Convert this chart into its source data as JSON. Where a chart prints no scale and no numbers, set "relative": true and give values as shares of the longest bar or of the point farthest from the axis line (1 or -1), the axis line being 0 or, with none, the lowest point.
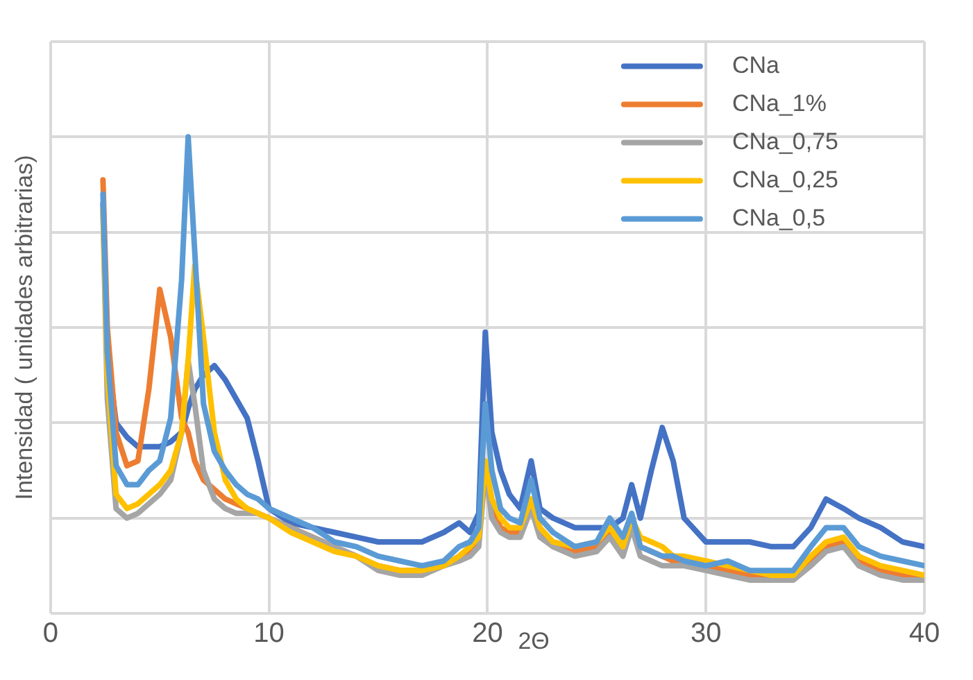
{
  "chart_data": {
    "type": "line",
    "ylabel": "Intensidad ( unidades arbitrarias)",
    "xlabel": "2Θ",
    "relative": true,
    "grid": true,
    "legend": "top right",
    "marker": "none",
    "line_style": "solid",
    "xlim": [
      0,
      40
    ],
    "xticks": [
      0,
      10,
      20,
      30,
      40
    ],
    "x": [
      2.4,
      2.6,
      3,
      3.5,
      4,
      4.5,
      5,
      5.5,
      6,
      6.3,
      6.6,
      7,
      7.5,
      8,
      8.5,
      9,
      9.5,
      10,
      11,
      12,
      13,
      14,
      15,
      16,
      17,
      18,
      18.7,
      19.2,
      19.6,
      19.9,
      20.2,
      20.6,
      21,
      21.5,
      22,
      22.4,
      23,
      24,
      25,
      25.6,
      26.2,
      26.6,
      27,
      27.5,
      28,
      28.5,
      29,
      30,
      31,
      32,
      33,
      34,
      34.8,
      35.5,
      36.3,
      37,
      38,
      39,
      40
    ],
    "series": [
      {
        "name": "CNa",
        "color": "#4472c4",
        "values": [
          0.86,
          0.55,
          0.4,
          0.37,
          0.35,
          0.35,
          0.35,
          0.36,
          0.38,
          0.43,
          0.47,
          0.5,
          0.52,
          0.49,
          0.45,
          0.41,
          0.32,
          0.22,
          0.19,
          0.18,
          0.17,
          0.16,
          0.15,
          0.15,
          0.15,
          0.17,
          0.19,
          0.17,
          0.21,
          0.59,
          0.38,
          0.3,
          0.25,
          0.22,
          0.32,
          0.22,
          0.2,
          0.18,
          0.18,
          0.18,
          0.2,
          0.27,
          0.2,
          0.3,
          0.39,
          0.32,
          0.2,
          0.15,
          0.15,
          0.15,
          0.14,
          0.14,
          0.18,
          0.24,
          0.22,
          0.2,
          0.18,
          0.15,
          0.14
        ]
      },
      {
        "name": "CNa_1%",
        "color": "#ed7d31",
        "values": [
          0.91,
          0.6,
          0.38,
          0.31,
          0.32,
          0.47,
          0.68,
          0.58,
          0.41,
          0.38,
          0.32,
          0.28,
          0.26,
          0.24,
          0.23,
          0.22,
          0.21,
          0.2,
          0.18,
          0.16,
          0.14,
          0.12,
          0.1,
          0.09,
          0.09,
          0.1,
          0.12,
          0.13,
          0.15,
          0.31,
          0.22,
          0.18,
          0.17,
          0.17,
          0.23,
          0.17,
          0.14,
          0.13,
          0.14,
          0.17,
          0.13,
          0.19,
          0.14,
          0.13,
          0.12,
          0.11,
          0.11,
          0.1,
          0.09,
          0.08,
          0.08,
          0.08,
          0.11,
          0.14,
          0.15,
          0.11,
          0.09,
          0.08,
          0.08
        ]
      },
      {
        "name": "CNa_0,75",
        "color": "#a5a5a5",
        "values": [
          0.84,
          0.45,
          0.22,
          0.2,
          0.21,
          0.23,
          0.25,
          0.28,
          0.38,
          0.53,
          0.44,
          0.3,
          0.24,
          0.22,
          0.21,
          0.21,
          0.21,
          0.2,
          0.18,
          0.16,
          0.14,
          0.12,
          0.09,
          0.08,
          0.08,
          0.1,
          0.11,
          0.12,
          0.14,
          0.3,
          0.2,
          0.17,
          0.16,
          0.16,
          0.22,
          0.16,
          0.14,
          0.12,
          0.13,
          0.16,
          0.12,
          0.18,
          0.12,
          0.11,
          0.1,
          0.1,
          0.1,
          0.09,
          0.08,
          0.07,
          0.07,
          0.07,
          0.1,
          0.13,
          0.14,
          0.1,
          0.08,
          0.07,
          0.07
        ]
      },
      {
        "name": "CNa_0,25",
        "color": "#ffc000",
        "values": [
          0.85,
          0.5,
          0.25,
          0.22,
          0.23,
          0.25,
          0.27,
          0.3,
          0.38,
          0.53,
          0.73,
          0.58,
          0.38,
          0.28,
          0.24,
          0.22,
          0.21,
          0.2,
          0.17,
          0.15,
          0.13,
          0.12,
          0.1,
          0.09,
          0.09,
          0.1,
          0.12,
          0.14,
          0.16,
          0.32,
          0.24,
          0.2,
          0.18,
          0.18,
          0.24,
          0.18,
          0.15,
          0.14,
          0.15,
          0.18,
          0.14,
          0.2,
          0.16,
          0.15,
          0.14,
          0.12,
          0.12,
          0.11,
          0.1,
          0.09,
          0.08,
          0.08,
          0.12,
          0.15,
          0.16,
          0.12,
          0.1,
          0.09,
          0.08
        ]
      },
      {
        "name": "CNa_0,5",
        "color": "#5b9bd5",
        "values": [
          0.88,
          0.55,
          0.31,
          0.27,
          0.27,
          0.3,
          0.32,
          0.41,
          0.7,
          1.0,
          0.76,
          0.44,
          0.34,
          0.3,
          0.27,
          0.25,
          0.24,
          0.22,
          0.2,
          0.18,
          0.15,
          0.14,
          0.12,
          0.11,
          0.1,
          0.11,
          0.14,
          0.15,
          0.18,
          0.44,
          0.3,
          0.22,
          0.2,
          0.19,
          0.28,
          0.2,
          0.17,
          0.14,
          0.15,
          0.2,
          0.16,
          0.21,
          0.14,
          0.13,
          0.12,
          0.12,
          0.11,
          0.1,
          0.11,
          0.09,
          0.09,
          0.09,
          0.14,
          0.18,
          0.18,
          0.14,
          0.12,
          0.11,
          0.1
        ]
      }
    ]
  }
}
